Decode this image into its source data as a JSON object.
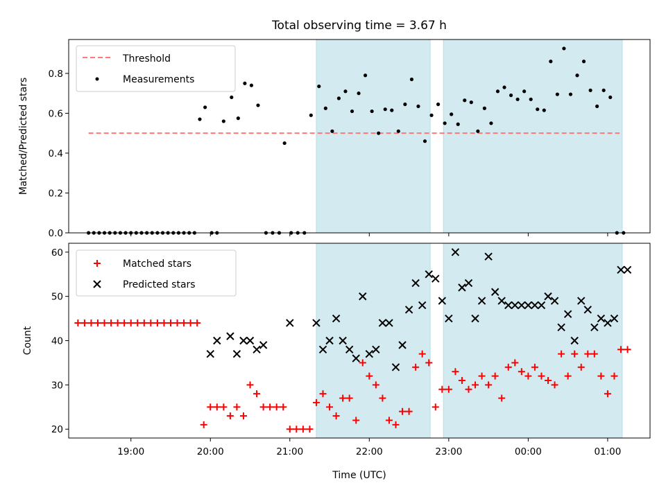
{
  "chart_data": [
    {
      "type": "scatter",
      "title": "Total observing time = 3.67 h",
      "xlabel": "",
      "ylabel": "Matched/Predicted stars",
      "xlim": [
        "18:13",
        "01:32"
      ],
      "ylim": [
        0,
        0.97
      ],
      "yticks": [
        0.0,
        0.2,
        0.4,
        0.6,
        0.8
      ],
      "ytick_labels": [
        "0.0",
        "0.2",
        "0.4",
        "0.6",
        "0.8"
      ],
      "legend": {
        "position": "upper-left",
        "entries": [
          "Threshold",
          "Measurements"
        ]
      },
      "shaded_intervals": [
        {
          "start": "21:20",
          "end": "22:46",
          "color": "#d3eaf1"
        },
        {
          "start": "22:56",
          "end": "01:11",
          "color": "#d3eaf1"
        }
      ],
      "series": [
        {
          "name": "Threshold",
          "style": "dashed-line",
          "color": "#ff7777",
          "x": [
            "18:28",
            "01:09"
          ],
          "y": [
            0.5,
            0.5
          ]
        },
        {
          "name": "Measurements",
          "style": "points",
          "color": "#000000",
          "x": [
            "18:28",
            "18:32",
            "18:36",
            "18:40",
            "18:44",
            "18:48",
            "18:52",
            "18:56",
            "19:00",
            "19:04",
            "19:08",
            "19:12",
            "19:16",
            "19:20",
            "19:24",
            "19:28",
            "19:32",
            "19:36",
            "19:40",
            "19:44",
            "19:48",
            "19:52",
            "19:56",
            "20:01",
            "20:05",
            "20:10",
            "20:16",
            "20:21",
            "20:26",
            "20:31",
            "20:36",
            "20:42",
            "20:47",
            "20:52",
            "20:56",
            "21:01",
            "21:06",
            "21:11",
            "21:16",
            "21:22",
            "21:27",
            "21:32",
            "21:37",
            "21:42",
            "21:47",
            "21:52",
            "21:57",
            "22:02",
            "22:07",
            "22:12",
            "22:17",
            "22:22",
            "22:27",
            "22:32",
            "22:37",
            "22:42",
            "22:47",
            "22:52",
            "22:57",
            "23:02",
            "23:07",
            "23:12",
            "23:17",
            "23:22",
            "23:27",
            "23:32",
            "23:37",
            "23:42",
            "23:47",
            "23:52",
            "23:57",
            "00:02",
            "00:07",
            "00:12",
            "00:17",
            "00:22",
            "00:27",
            "00:32",
            "00:37",
            "00:42",
            "00:47",
            "00:52",
            "00:57",
            "01:02",
            "01:07",
            "01:12"
          ],
          "y": [
            0,
            0,
            0,
            0,
            0,
            0,
            0,
            0,
            0,
            0,
            0,
            0,
            0,
            0,
            0,
            0,
            0,
            0,
            0,
            0,
            0,
            0.57,
            0.63,
            0,
            0,
            0.56,
            0.68,
            0.575,
            0.75,
            0.74,
            0.64,
            0,
            0,
            0,
            0.45,
            0,
            0,
            0,
            0.59,
            0.735,
            0.625,
            0.51,
            0.675,
            0.71,
            0.61,
            0.7,
            0.79,
            0.61,
            0.5,
            0.62,
            0.615,
            0.51,
            0.645,
            0.77,
            0.635,
            0.46,
            0.59,
            0.645,
            0.55,
            0.595,
            0.545,
            0.665,
            0.655,
            0.51,
            0.625,
            0.55,
            0.71,
            0.73,
            0.69,
            0.67,
            0.71,
            0.67,
            0.62,
            0.615,
            0.86,
            0.695,
            0.925,
            0.695,
            0.79,
            0.86,
            0.715,
            0.635,
            0.715,
            0.68,
            0,
            0
          ]
        }
      ]
    },
    {
      "type": "scatter",
      "title": "",
      "xlabel": "Time (UTC)",
      "ylabel": "Count",
      "xlim": [
        "18:13",
        "01:32"
      ],
      "ylim": [
        18,
        62
      ],
      "xticks": [
        "19:00",
        "20:00",
        "21:00",
        "22:00",
        "23:00",
        "00:00",
        "01:00"
      ],
      "yticks": [
        20,
        30,
        40,
        50,
        60
      ],
      "ytick_labels": [
        "20",
        "30",
        "40",
        "50",
        "60"
      ],
      "legend": {
        "position": "upper-left",
        "entries": [
          "Matched stars",
          "Predicted stars"
        ]
      },
      "shaded_intervals": [
        {
          "start": "21:20",
          "end": "22:46",
          "color": "#d3eaf1"
        },
        {
          "start": "22:56",
          "end": "01:11",
          "color": "#d3eaf1"
        }
      ],
      "series": [
        {
          "name": "Matched stars",
          "style": "plus",
          "color": "#ff0000",
          "x": [
            "18:20",
            "18:25",
            "18:30",
            "18:35",
            "18:40",
            "18:45",
            "18:50",
            "18:55",
            "19:00",
            "19:05",
            "19:10",
            "19:15",
            "19:20",
            "19:25",
            "19:30",
            "19:35",
            "19:40",
            "19:45",
            "19:50",
            "19:55",
            "20:00",
            "20:05",
            "20:10",
            "20:15",
            "20:20",
            "20:25",
            "20:30",
            "20:35",
            "20:40",
            "20:45",
            "20:50",
            "20:55",
            "21:00",
            "21:05",
            "21:10",
            "21:15",
            "21:20",
            "21:25",
            "21:30",
            "21:35",
            "21:40",
            "21:45",
            "21:50",
            "21:55",
            "22:00",
            "22:05",
            "22:10",
            "22:15",
            "22:20",
            "22:25",
            "22:30",
            "22:35",
            "22:40",
            "22:45",
            "22:50",
            "22:55",
            "23:00",
            "23:05",
            "23:10",
            "23:15",
            "23:20",
            "23:25",
            "23:30",
            "23:35",
            "23:40",
            "23:45",
            "23:50",
            "23:55",
            "00:00",
            "00:05",
            "00:10",
            "00:15",
            "00:20",
            "00:25",
            "00:30",
            "00:35",
            "00:40",
            "00:45",
            "00:50",
            "00:55",
            "01:00",
            "01:05",
            "01:10",
            "01:15"
          ],
          "y": [
            44,
            44,
            44,
            44,
            44,
            44,
            44,
            44,
            44,
            44,
            44,
            44,
            44,
            44,
            44,
            44,
            44,
            44,
            44,
            21,
            25,
            25,
            25,
            23,
            25,
            23,
            30,
            28,
            25,
            25,
            25,
            25,
            20,
            20,
            20,
            20,
            26,
            28,
            25,
            23,
            27,
            27,
            22,
            35,
            32,
            30,
            27,
            22,
            21,
            24,
            24,
            34,
            37,
            35,
            25,
            29,
            29,
            33,
            31,
            29,
            30,
            32,
            30,
            32,
            27,
            34,
            35,
            33,
            32,
            34,
            32,
            31,
            30,
            37,
            32,
            37,
            34,
            37,
            37,
            32,
            28,
            32,
            38,
            38
          ],
          "x_offset_minutes": 0
        },
        {
          "name": "Predicted stars",
          "style": "x",
          "color": "#000000",
          "x": [
            "20:00",
            "20:05",
            "20:15",
            "20:20",
            "20:25",
            "20:30",
            "20:35",
            "20:40",
            "21:00",
            "21:20",
            "21:25",
            "21:30",
            "21:35",
            "21:40",
            "21:45",
            "21:50",
            "21:55",
            "22:00",
            "22:05",
            "22:10",
            "22:15",
            "22:20",
            "22:25",
            "22:30",
            "22:35",
            "22:40",
            "22:45",
            "22:50",
            "22:55",
            "23:00",
            "23:05",
            "23:10",
            "23:15",
            "23:20",
            "23:25",
            "23:30",
            "23:35",
            "23:40",
            "23:45",
            "23:50",
            "23:55",
            "00:00",
            "00:05",
            "00:10",
            "00:15",
            "00:20",
            "00:25",
            "00:30",
            "00:35",
            "00:40",
            "00:45",
            "00:50",
            "00:55",
            "01:00",
            "01:05",
            "01:10",
            "01:15"
          ],
          "y": [
            37,
            40,
            41,
            37,
            40,
            40,
            38,
            39,
            44,
            44,
            38,
            40,
            45,
            40,
            38,
            36,
            50,
            37,
            38,
            44,
            44,
            34,
            39,
            47,
            53,
            48,
            55,
            54,
            49,
            45,
            60,
            52,
            53,
            45,
            49,
            59,
            51,
            49,
            48,
            48,
            48,
            48,
            48,
            48,
            50,
            49,
            43,
            46,
            40,
            49,
            47,
            43,
            45,
            44,
            45,
            56,
            56
          ]
        }
      ]
    }
  ]
}
